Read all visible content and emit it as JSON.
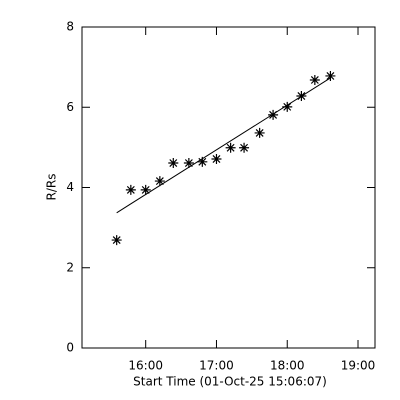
{
  "chart_data": {
    "type": "scatter",
    "xlabel": "Start Time (01-Oct-25 15:06:07)",
    "ylabel": "R/Rs",
    "xlim": [
      15.1,
      19.24
    ],
    "ylim": [
      0,
      8
    ],
    "xticks": [
      {
        "value": 16,
        "label": "16:00"
      },
      {
        "value": 17,
        "label": "17:00"
      },
      {
        "value": 18,
        "label": "18:00"
      },
      {
        "value": 19,
        "label": "19:00"
      }
    ],
    "yticks": [
      0,
      2,
      4,
      6,
      8
    ],
    "color": "#000000",
    "series": [
      {
        "style": "asterisk",
        "x": [
          15.59,
          15.79,
          16.0,
          16.2,
          16.39,
          16.61,
          16.8,
          17.0,
          17.2,
          17.39,
          17.61,
          17.8,
          18.0,
          18.2,
          18.39,
          18.61
        ],
        "values": [
          2.69,
          3.94,
          3.94,
          4.16,
          4.61,
          4.61,
          4.64,
          4.71,
          4.99,
          4.99,
          5.36,
          5.81,
          6.01,
          6.28,
          6.68,
          6.78
        ]
      },
      {
        "style": "line",
        "x": [
          15.59,
          18.61
        ],
        "values": [
          3.37,
          6.73
        ]
      }
    ]
  }
}
